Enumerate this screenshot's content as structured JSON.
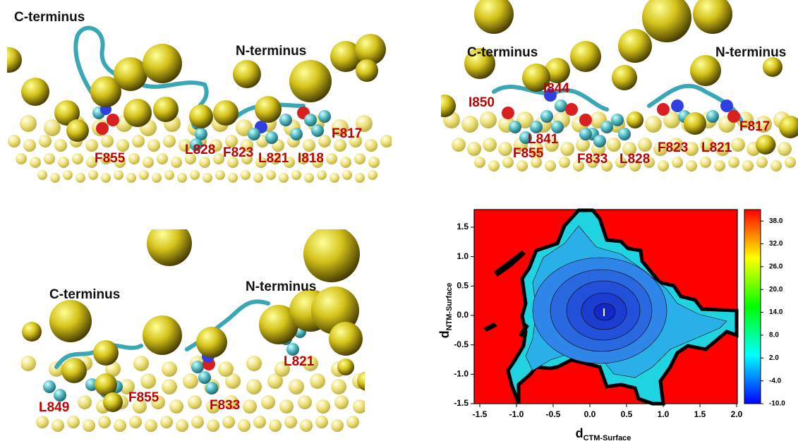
{
  "panels": [
    {
      "labels": [
        "C-terminus",
        "N-terminus"
      ],
      "residues": [
        "F855",
        "L828",
        "F823",
        "L821",
        "I818",
        "F817"
      ]
    },
    {
      "labels": [
        "C-terminus",
        "N-terminus"
      ],
      "residues": [
        "I844",
        "I850",
        "L841",
        "F855",
        "F833",
        "L828",
        "F823",
        "L821",
        "F817"
      ]
    },
    {
      "labels": [
        "C-terminus",
        "N-terminus"
      ],
      "residues": [
        "L821",
        "L849",
        "F855",
        "F833"
      ]
    }
  ],
  "chart_data": {
    "type": "contour",
    "x_label": {
      "main": "d",
      "subscript": "CTM-Surface"
    },
    "y_label": {
      "main": "d",
      "subscript": "NTM-Surface"
    },
    "xlim": [
      -1.5,
      2.0
    ],
    "xticks": [
      -1.5,
      {
        "value": -1.0,
        "label": "-1.0"
      },
      -0.5,
      {
        "value": 0.0,
        "label": "0.0"
      },
      0.5,
      {
        "value": 1.0,
        "label": "1.0"
      },
      1.5,
      {
        "value": 2.0,
        "label": "2.0"
      }
    ],
    "ylim": [
      -1.5,
      1.8
    ],
    "yticks": [
      -1.5,
      {
        "value": -1.0,
        "label": "-1.0"
      },
      -0.5,
      {
        "value": 0.0,
        "label": "0.0"
      },
      0.5,
      {
        "value": 1.0,
        "label": "1.0"
      },
      1.5
    ],
    "clim": [
      -10,
      41
    ],
    "cticks": [
      {
        "value": 38,
        "label": "38.0"
      },
      {
        "value": 32,
        "label": "32.0"
      },
      {
        "value": 26,
        "label": "26.0"
      },
      {
        "value": 20,
        "label": "20.0"
      },
      {
        "value": 14,
        "label": "14.0"
      },
      {
        "value": 8,
        "label": "8.0"
      },
      {
        "value": 2,
        "label": "2.0"
      },
      {
        "value": -4,
        "label": "-4.0"
      },
      {
        "value": -10,
        "label": "-10.0"
      }
    ],
    "colormap": [
      "#0000ff",
      "#00ffff",
      "#00ff00",
      "#ffff00",
      "#ff0000"
    ]
  }
}
